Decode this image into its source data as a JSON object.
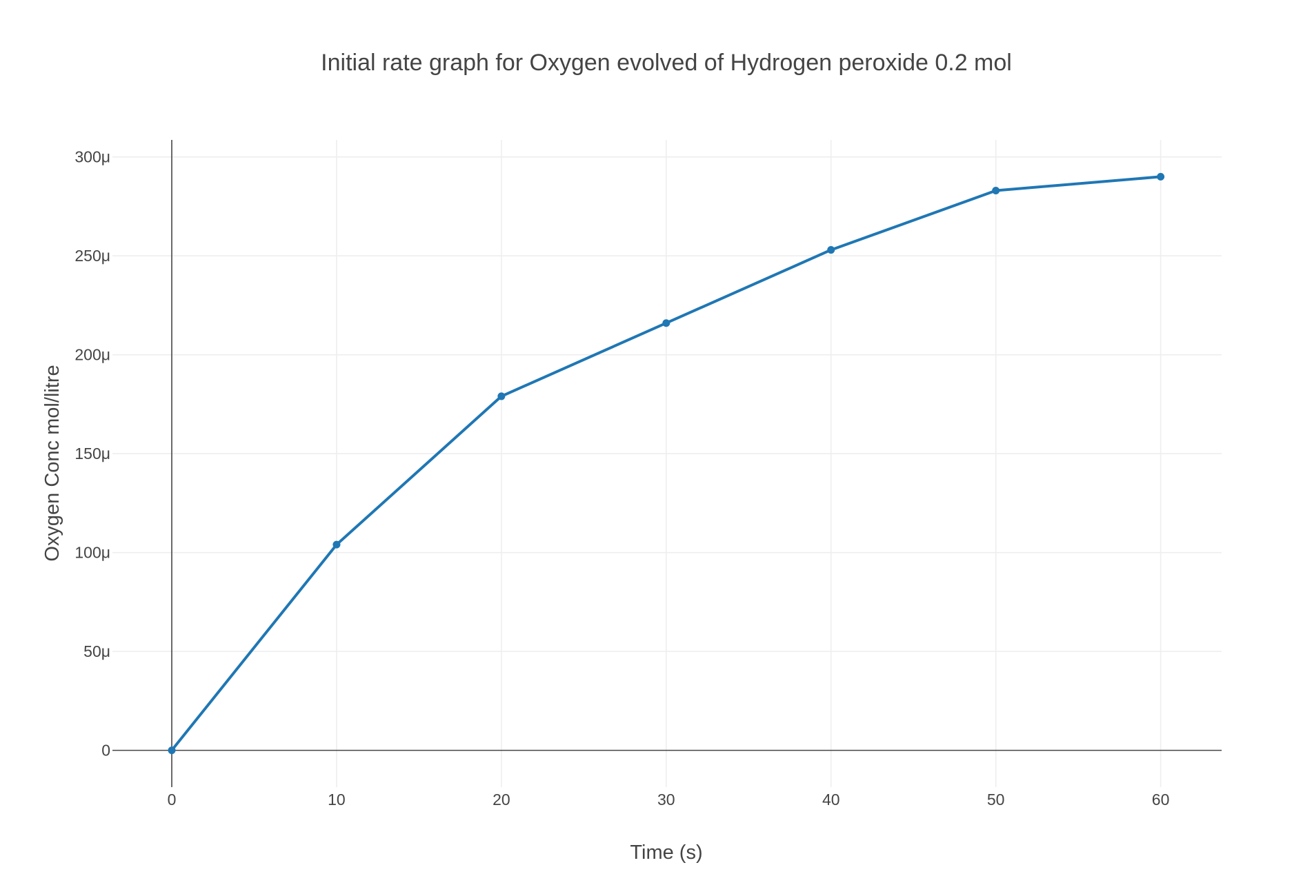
{
  "chart_data": {
    "type": "line",
    "title": "Initial rate graph for Oxygen evolved of Hydrogen peroxide 0.2 mol",
    "xlabel": "Time (s)",
    "ylabel": "Oxygen Conc mol/litre",
    "xlim": [
      -3.6,
      63.7
    ],
    "ylim": [
      -1.86e-05,
      0.0003086
    ],
    "x_ticks": [
      0,
      10,
      20,
      30,
      40,
      50,
      60
    ],
    "x_tick_labels": [
      "0",
      "10",
      "20",
      "30",
      "40",
      "50",
      "60"
    ],
    "y_ticks": [
      0,
      5e-05,
      0.0001,
      0.00015,
      0.0002,
      0.00025,
      0.0003
    ],
    "y_tick_labels": [
      "0",
      "50μ",
      "100μ",
      "150μ",
      "200μ",
      "250μ",
      "300μ"
    ],
    "grid": true,
    "legend": "none",
    "series": [
      {
        "color": "#1f77b4",
        "x": [
          0,
          10,
          20,
          30,
          40,
          50,
          60
        ],
        "y": [
          0,
          0.000104,
          0.000179,
          0.000216,
          0.000253,
          0.000283,
          0.00029
        ]
      }
    ]
  }
}
